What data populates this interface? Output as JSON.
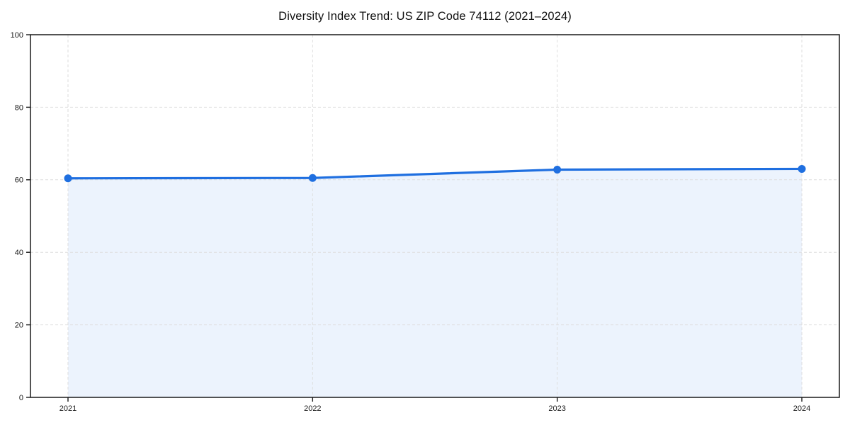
{
  "chart_data": {
    "type": "line",
    "title": "Diversity Index Trend: US ZIP Code 74112 (2021–2024)",
    "categories": [
      "2021",
      "2022",
      "2023",
      "2024"
    ],
    "series": [
      {
        "name": "Diversity Index",
        "values": [
          60.4,
          60.5,
          62.8,
          63.0
        ]
      }
    ],
    "xlabel": "",
    "ylabel": "",
    "ylim": [
      0,
      100
    ],
    "yticks": [
      0,
      20,
      40,
      60,
      80,
      100
    ],
    "grid": "dashed",
    "area_fill": true,
    "legend": null,
    "colors": {
      "line": "#1f6fe0",
      "marker": "#1f6fe0",
      "area": "#dce9fb",
      "gridline": "#dedede",
      "spine": "#1a1a1a",
      "tick_label": "#1a1a1a",
      "title": "#111111",
      "background": "#ffffff"
    }
  }
}
